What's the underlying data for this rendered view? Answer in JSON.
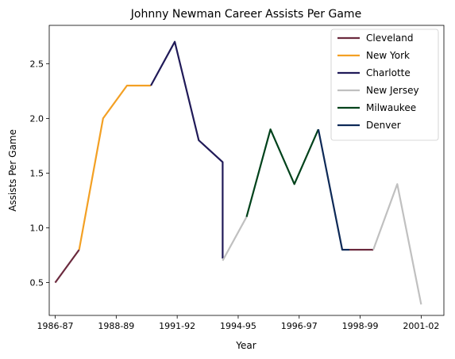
{
  "chart_data": {
    "type": "line",
    "title": "Johnny Newman Career Assists Per Game",
    "xlabel": "Year",
    "ylabel": "Assists Per Game",
    "x_ticks": [
      "1986-87",
      "1988-89",
      "1991-92",
      "1994-95",
      "1996-97",
      "1998-99",
      "2001-02"
    ],
    "y_ticks": [
      "0.5",
      "1.0",
      "1.5",
      "2.0",
      "2.5"
    ],
    "xlim": [
      1985.75,
      2002.25
    ],
    "ylim": [
      0.2,
      2.85
    ],
    "legend_position": "top-right",
    "grid": false,
    "series": [
      {
        "name": "Cleveland",
        "color": "#6b2a3e",
        "segments": [
          [
            [
              1986,
              0.5
            ],
            [
              1987,
              0.8
            ]
          ],
          [
            [
              1998.3,
              0.8
            ],
            [
              1999.3,
              0.8
            ]
          ]
        ]
      },
      {
        "name": "New York",
        "color": "#f3a024",
        "segments": [
          [
            [
              1987,
              0.8
            ],
            [
              1988,
              2.0
            ],
            [
              1989,
              2.3
            ],
            [
              1990,
              2.3
            ]
          ]
        ]
      },
      {
        "name": "Charlotte",
        "color": "#201a58",
        "segments": [
          [
            [
              1990,
              2.3
            ],
            [
              1991,
              2.7
            ],
            [
              1992,
              1.8
            ],
            [
              1993,
              1.6
            ],
            [
              1993,
              0.72
            ]
          ]
        ]
      },
      {
        "name": "New Jersey",
        "color": "#c0c0c0",
        "segments": [
          [
            [
              1993,
              0.7
            ],
            [
              1994,
              1.1
            ]
          ],
          [
            [
              1999.3,
              0.8
            ],
            [
              2000.3,
              1.4
            ],
            [
              2001.3,
              0.3
            ]
          ]
        ]
      },
      {
        "name": "Milwaukee",
        "color": "#00421b",
        "segments": [
          [
            [
              1994,
              1.1
            ],
            [
              1995,
              1.9
            ],
            [
              1996,
              1.4
            ],
            [
              1997,
              1.9
            ]
          ]
        ]
      },
      {
        "name": "Denver",
        "color": "#0d2957",
        "segments": [
          [
            [
              1997,
              1.9
            ],
            [
              1998,
              0.8
            ],
            [
              1998.3,
              0.8
            ]
          ]
        ]
      }
    ]
  }
}
